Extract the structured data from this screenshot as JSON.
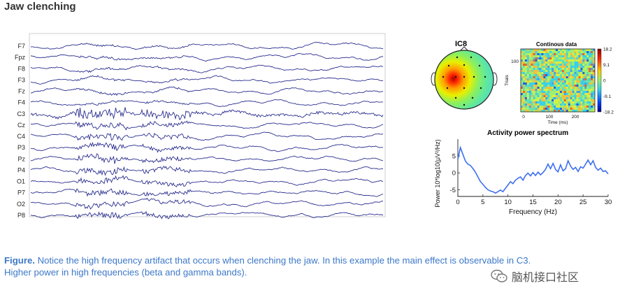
{
  "title": "Jaw clenching",
  "chart_data": [
    {
      "type": "line",
      "name": "eeg-traces",
      "channels": [
        "F7",
        "Fpz",
        "F8",
        "F3",
        "Fz",
        "F4",
        "C3",
        "Cz",
        "C4",
        "P3",
        "Pz",
        "P4",
        "O1",
        "P7",
        "O2",
        "P8"
      ],
      "artifact_channel": "C3",
      "trace_color": "#2b2f8f"
    },
    {
      "type": "heatmap",
      "name": "ica-component",
      "component_label": "IC8",
      "erp_title": "Continous data",
      "ylabel": "Trials",
      "xlabel": "Time (ms)",
      "x_ticks": [
        "0",
        "100",
        "200"
      ],
      "y_ticks": [
        "100"
      ],
      "colorbar_ticks": [
        "18.2",
        "9.1",
        "0",
        "-9.1",
        "-18.2"
      ]
    },
    {
      "type": "line",
      "name": "activity-power-spectrum",
      "title": "Activity power spectrum",
      "xlabel": "Frequency (Hz)",
      "ylabel": "Power 10*log10(μV²/Hz)",
      "xlim": [
        0,
        30
      ],
      "ylim": [
        -7,
        10
      ],
      "x_ticks": [
        0,
        5,
        10,
        15,
        20,
        25,
        30
      ],
      "y_ticks": [
        -5,
        0,
        5
      ],
      "color": "#3c6ff0",
      "x": [
        0,
        0.5,
        1,
        1.5,
        2,
        2.5,
        3,
        3.5,
        4,
        4.5,
        5,
        5.5,
        6,
        6.5,
        7,
        7.5,
        8,
        8.5,
        9,
        9.5,
        10,
        10.5,
        11,
        11.5,
        12,
        12.5,
        13,
        13.5,
        14,
        14.5,
        15,
        15.5,
        16,
        16.5,
        17,
        17.5,
        18,
        18.5,
        19,
        19.5,
        20,
        20.5,
        21,
        21.5,
        22,
        22.5,
        23,
        23.5,
        24,
        24.5,
        25,
        25.5,
        26,
        26.5,
        27,
        27.5,
        28,
        28.5,
        29,
        29.5,
        30
      ],
      "y": [
        4,
        7.5,
        5.5,
        3.5,
        2.6,
        2.2,
        1.3,
        0.2,
        -1.2,
        -2.6,
        -3.4,
        -4.3,
        -5.0,
        -5.4,
        -5.6,
        -6.0,
        -5.6,
        -5.1,
        -5.6,
        -4.6,
        -3.6,
        -2.6,
        -3.2,
        -2.2,
        -1.6,
        -1.2,
        -2.2,
        -0.8,
        -0.1,
        -0.9,
        0.1,
        -0.8,
        0.2,
        -0.6,
        0.1,
        1.0,
        2.6,
        1.2,
        2.8,
        1.0,
        0.3,
        2.4,
        0.6,
        1.2,
        3.6,
        2.0,
        1.0,
        1.6,
        0.4,
        1.8,
        1.4,
        2.6,
        3.8,
        2.4,
        3.6,
        1.6,
        0.8,
        1.4,
        0.4,
        0.6,
        -0.3
      ]
    }
  ],
  "caption": {
    "label": "Figure.",
    "line1": " Notice the high frequency artifact that occurs when clenching the jaw. In this example the main effect is observable in C3.",
    "line2": "Higher power in high frequencies (beta and gamma bands)."
  },
  "watermark": {
    "text": "脑机接口社区",
    "icon": "wechat-icon"
  }
}
